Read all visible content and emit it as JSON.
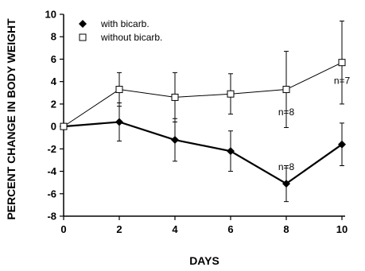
{
  "chart_data": {
    "type": "line",
    "xlabel": "DAYS",
    "ylabel": "PERCENT CHANGE IN BODY WEIGHT",
    "xlim": [
      0,
      10
    ],
    "ylim": [
      -8,
      10
    ],
    "x_ticks": [
      "0",
      "2",
      "4",
      "6",
      "8",
      "10"
    ],
    "y_ticks": [
      "10",
      "8",
      "6",
      "4",
      "2",
      "0",
      "-2",
      "-4",
      "-6",
      "-8"
    ],
    "grid": false,
    "legend_position": "top-left",
    "series": [
      {
        "name": "with bicarb.",
        "marker": "filled-diamond",
        "line_style": "solid-thick",
        "color": "#000000",
        "x": [
          0,
          2,
          4,
          6,
          8,
          10
        ],
        "y": [
          0,
          0.4,
          -1.2,
          -2.2,
          -5.1,
          -1.6
        ],
        "error": [
          0,
          1.7,
          1.9,
          1.8,
          1.6,
          1.9
        ]
      },
      {
        "name": "without bicarb.",
        "marker": "open-square",
        "line_style": "solid-thin",
        "color": "#000000",
        "x": [
          0,
          2,
          4,
          6,
          8,
          10
        ],
        "y": [
          0,
          3.3,
          2.6,
          2.9,
          3.3,
          5.7
        ],
        "error": [
          0,
          1.5,
          2.2,
          1.8,
          3.4,
          3.7
        ]
      }
    ],
    "annotations": [
      {
        "text": "n=8",
        "x": 8,
        "y": 1.3
      },
      {
        "text": "n=8",
        "x": 8,
        "y": -3.6
      },
      {
        "text": "n=7",
        "x": 10,
        "y": 4.1
      }
    ]
  }
}
